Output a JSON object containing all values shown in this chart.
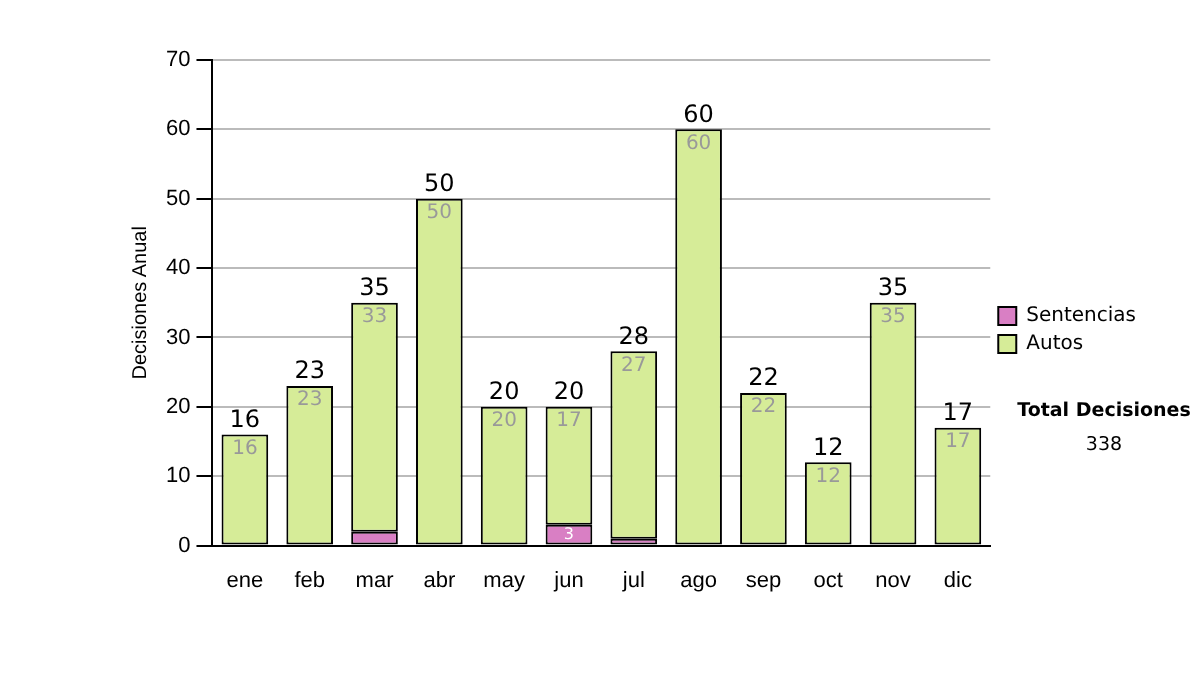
{
  "chart_data": {
    "type": "bar",
    "stacked": true,
    "ylabel": "Decisiones Anual",
    "categories": [
      "ene",
      "feb",
      "mar",
      "abr",
      "may",
      "jun",
      "jul",
      "ago",
      "sep",
      "oct",
      "nov",
      "dic"
    ],
    "series": [
      {
        "name": "Sentencias",
        "color": "#d97fc4",
        "values": [
          0,
          0,
          2,
          0,
          0,
          3,
          1,
          0,
          0,
          0,
          0,
          0
        ],
        "value_labels": [
          null,
          null,
          null,
          null,
          null,
          "3",
          null,
          null,
          null,
          null,
          null,
          null
        ]
      },
      {
        "name": "Autos",
        "color": "#d6ec98",
        "values": [
          16,
          23,
          33,
          50,
          20,
          17,
          27,
          60,
          22,
          12,
          35,
          17
        ],
        "value_labels": [
          "16",
          "23",
          "33",
          "50",
          "20",
          "17",
          "27",
          "60",
          "22",
          "12",
          "35",
          "17"
        ]
      }
    ],
    "totals": [
      "16",
      "23",
      "35",
      "50",
      "20",
      "20",
      "28",
      "60",
      "22",
      "12",
      "35",
      "17"
    ],
    "ylim": [
      0,
      70
    ],
    "yticks": [
      0,
      10,
      20,
      30,
      40,
      50,
      60,
      70
    ],
    "grid": "y",
    "legend": "right",
    "annotations": [
      "Total Decisiones",
      "338"
    ]
  }
}
